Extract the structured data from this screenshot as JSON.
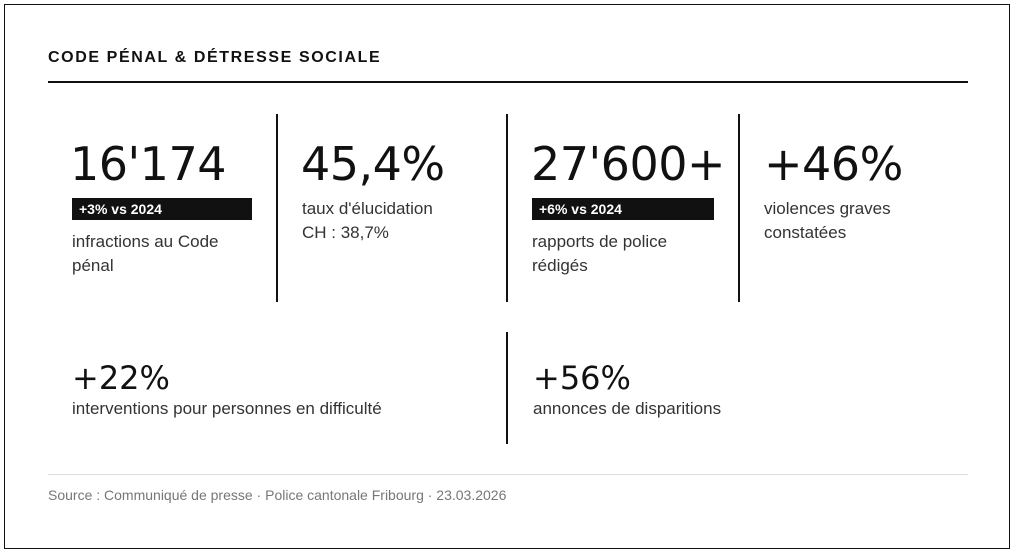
{
  "header": {
    "title": "CODE PÉNAL & DÉTRESSE SOCIALE"
  },
  "stats_top": [
    {
      "value": "16'174",
      "badge": "+3% vs 2024",
      "label_line1": "infractions au Code",
      "label_line2": "pénal"
    },
    {
      "value": "45,4%",
      "badge": "",
      "label_line1": "taux d'élucidation",
      "label_line2": "CH : 38,7%"
    },
    {
      "value": "27'600+",
      "badge": "+6% vs 2024",
      "label_line1": "rapports de police",
      "label_line2": "rédigés"
    },
    {
      "value": "+46%",
      "badge": "",
      "label_line1": "violences graves",
      "label_line2": "constatées"
    }
  ],
  "stats_bottom": [
    {
      "value": "+22%",
      "label": "interventions pour personnes en difficulté"
    },
    {
      "value": "+56%",
      "label": "annonces de disparitions"
    }
  ],
  "footer": {
    "source": "Source : Communiqué de presse · Police cantonale Fribourg · 23.03.2026"
  },
  "colors": {
    "ink": "#111111",
    "badge_bg": "#111111",
    "badge_text": "#ffffff",
    "muted": "#777777"
  }
}
